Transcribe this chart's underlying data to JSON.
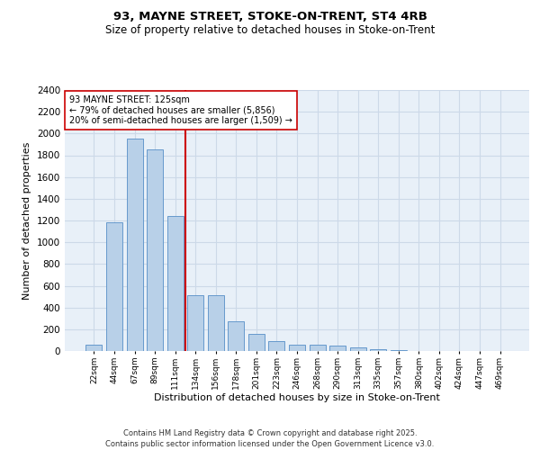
{
  "title1": "93, MAYNE STREET, STOKE-ON-TRENT, ST4 4RB",
  "title2": "Size of property relative to detached houses in Stoke-on-Trent",
  "xlabel": "Distribution of detached houses by size in Stoke-on-Trent",
  "ylabel": "Number of detached properties",
  "footnote1": "Contains HM Land Registry data © Crown copyright and database right 2025.",
  "footnote2": "Contains public sector information licensed under the Open Government Licence v3.0.",
  "categories": [
    "22sqm",
    "44sqm",
    "67sqm",
    "89sqm",
    "111sqm",
    "134sqm",
    "156sqm",
    "178sqm",
    "201sqm",
    "223sqm",
    "246sqm",
    "268sqm",
    "290sqm",
    "313sqm",
    "335sqm",
    "357sqm",
    "380sqm",
    "402sqm",
    "424sqm",
    "447sqm",
    "469sqm"
  ],
  "values": [
    60,
    1180,
    1950,
    1850,
    1240,
    510,
    510,
    270,
    160,
    90,
    55,
    55,
    50,
    35,
    15,
    8,
    3,
    2,
    1,
    1,
    0
  ],
  "bar_color": "#b8d0e8",
  "bar_edge_color": "#6699cc",
  "grid_color": "#ccd9e8",
  "bg_color": "#e8f0f8",
  "vline_x_index": 4.5,
  "vline_color": "#cc0000",
  "annotation_line1": "93 MAYNE STREET: 125sqm",
  "annotation_line2": "← 79% of detached houses are smaller (5,856)",
  "annotation_line3": "20% of semi-detached houses are larger (1,509) →",
  "ylim": [
    0,
    2400
  ],
  "yticks": [
    0,
    200,
    400,
    600,
    800,
    1000,
    1200,
    1400,
    1600,
    1800,
    2000,
    2200,
    2400
  ]
}
